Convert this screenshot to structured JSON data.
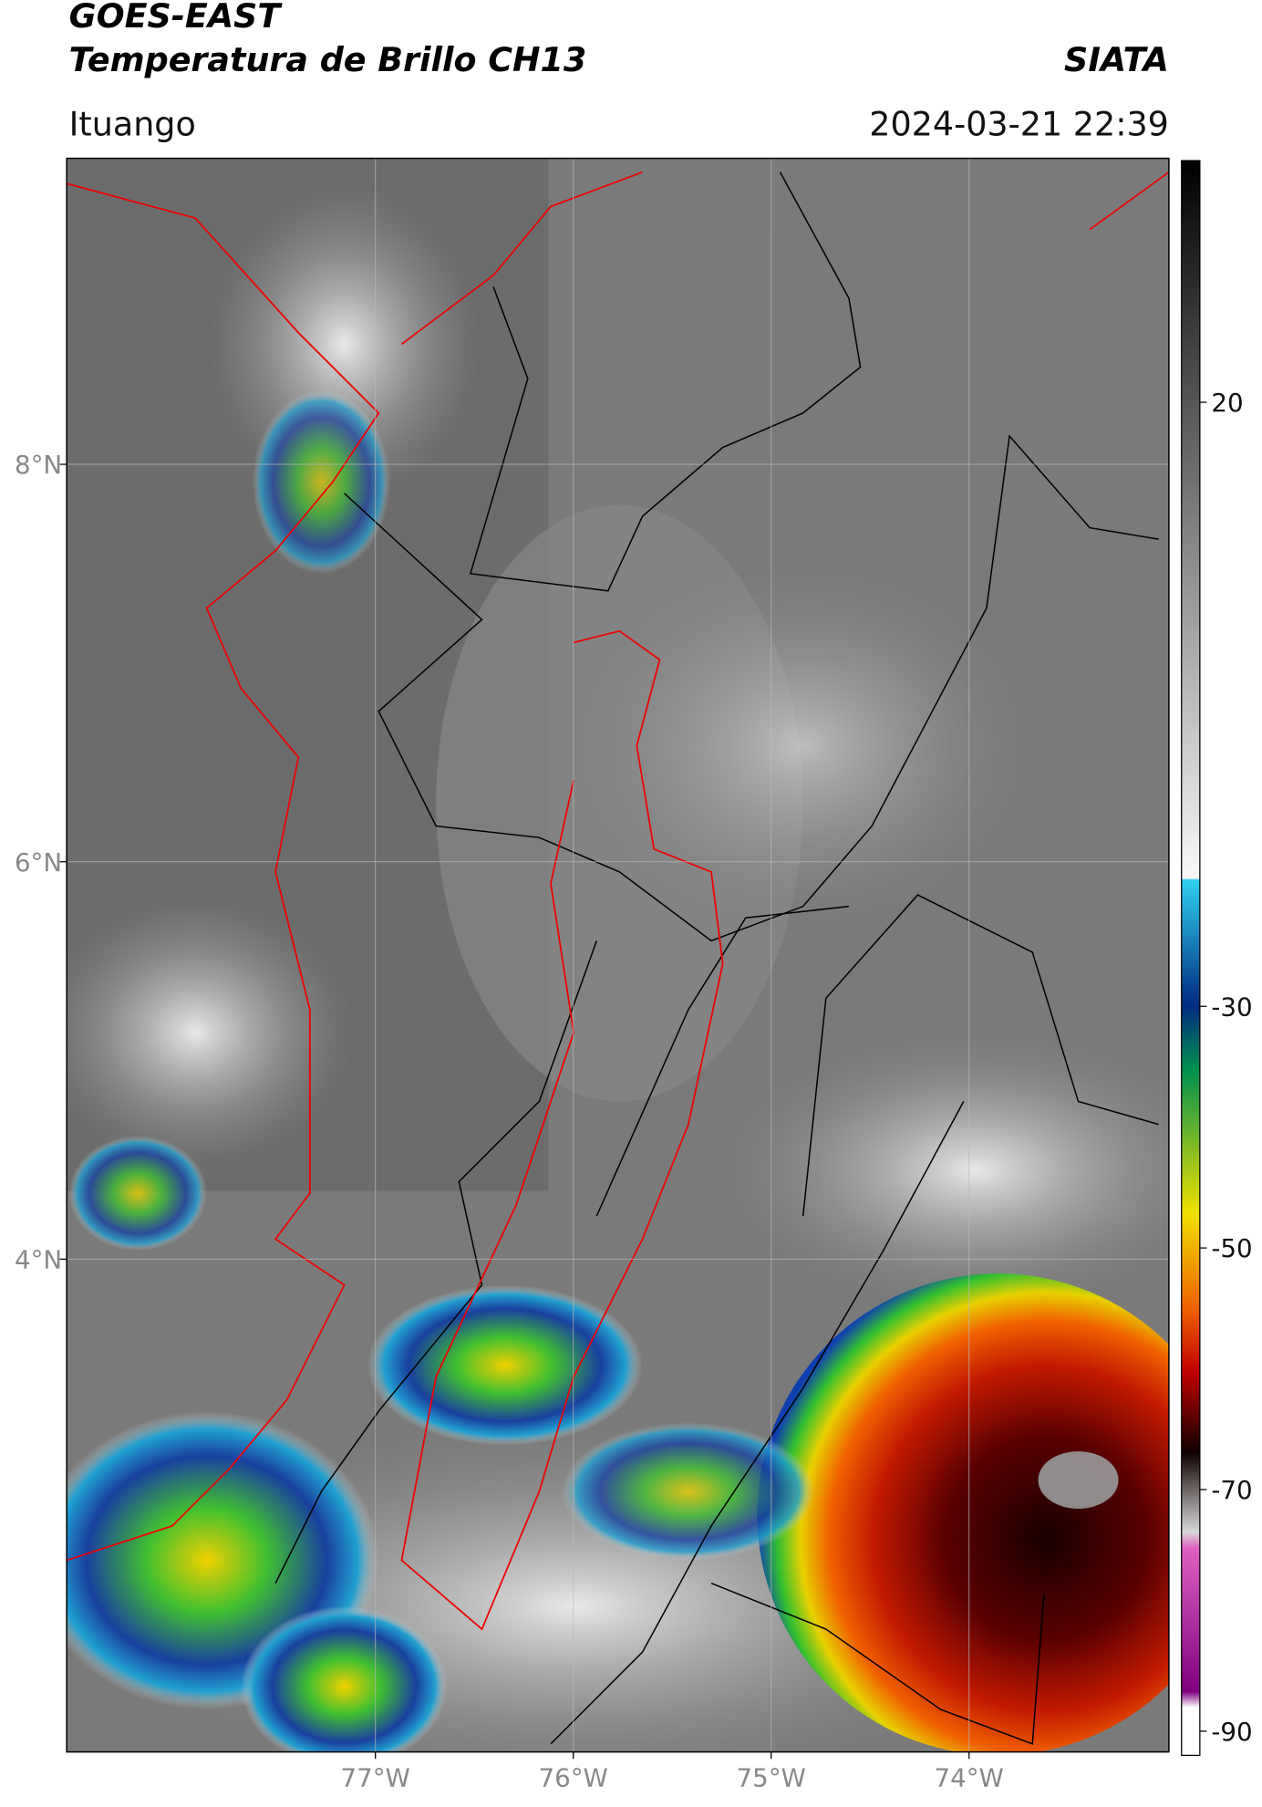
{
  "header": {
    "title": "GOES-EAST",
    "subtitle": "Temperatura de Brillo CH13",
    "brand": "SIATA",
    "location": "Ituango",
    "datetime": "2024-03-21 22:39"
  },
  "map": {
    "lat_ticks": [
      {
        "value": 8,
        "label": "8°N"
      },
      {
        "value": 6,
        "label": "6°N"
      },
      {
        "value": 4,
        "label": "4°N"
      }
    ],
    "lon_ticks": [
      {
        "value": -77,
        "label": "77°W"
      },
      {
        "value": -76,
        "label": "76°W"
      },
      {
        "value": -75,
        "label": "75°W"
      },
      {
        "value": -74,
        "label": "74°W"
      }
    ]
  },
  "colorbar": {
    "lim": [
      -92,
      40
    ],
    "ticks": [
      20,
      -30,
      -50,
      -70,
      -90
    ]
  }
}
